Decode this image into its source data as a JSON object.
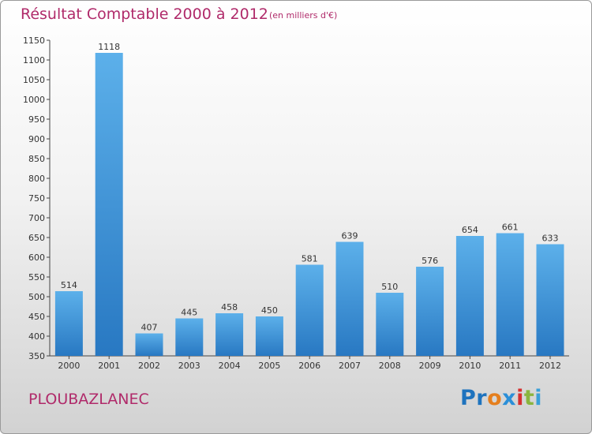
{
  "title": "Résultat Comptable 2000 à 2012",
  "subtitle": "(en milliers d'€)",
  "commune": "PLOUBAZLANEC",
  "logo": {
    "text": "Proxiti",
    "parts": [
      "Pr",
      "o",
      "x",
      "i",
      "t",
      "i"
    ]
  },
  "colors": {
    "title": "#b02a6a",
    "bar_light": "#5aaee8",
    "bar_dark": "#2a7fc8"
  },
  "chart_data": {
    "type": "bar",
    "categories": [
      "2000",
      "2001",
      "2002",
      "2003",
      "2004",
      "2005",
      "2006",
      "2007",
      "2008",
      "2009",
      "2010",
      "2011",
      "2012"
    ],
    "values": [
      514,
      1118,
      407,
      445,
      458,
      450,
      581,
      639,
      510,
      576,
      654,
      661,
      633
    ],
    "ylim": [
      350,
      1150
    ],
    "yticks": [
      350,
      400,
      450,
      500,
      550,
      600,
      650,
      700,
      750,
      800,
      850,
      900,
      950,
      1000,
      1050,
      1100,
      1150
    ],
    "grid": false,
    "legend": "none"
  }
}
